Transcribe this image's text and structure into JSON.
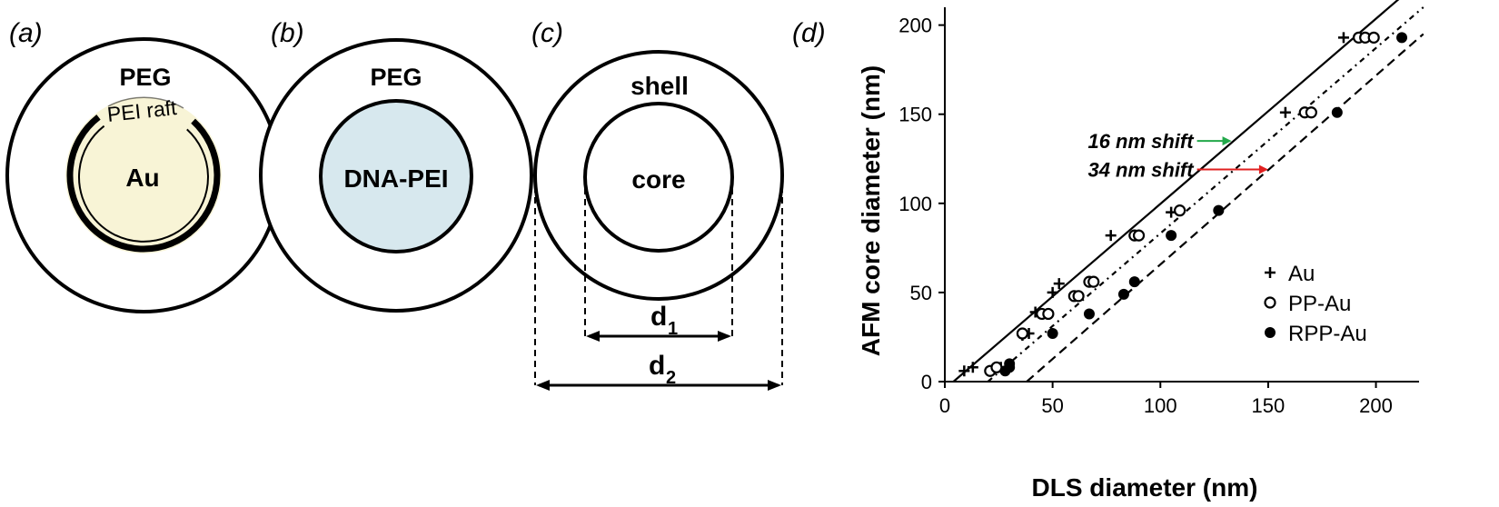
{
  "panels": [
    {
      "id": "a",
      "label": "(a)",
      "outer_label": "PEG",
      "raft_label": "PEI raft",
      "core_label": "Au",
      "core_color": "#f8f4d6"
    },
    {
      "id": "b",
      "label": "(b)",
      "outer_label": "PEG",
      "core_label": "DNA-PEI",
      "core_color": "#d7e8ee"
    },
    {
      "id": "c",
      "label": "(c)",
      "outer_label": "shell",
      "core_label": "core",
      "d1_label": "d",
      "d1_sub": "1",
      "d2_label": "d",
      "d2_sub": "2"
    },
    {
      "id": "d",
      "label": "(d)"
    }
  ],
  "chart_data": {
    "type": "scatter",
    "xlabel": "DLS diameter (nm)",
    "ylabel": "AFM core diameter (nm)",
    "xlim": [
      0,
      220
    ],
    "ylim": [
      0,
      210
    ],
    "x_ticks": [
      0,
      50,
      100,
      150,
      200
    ],
    "y_ticks": [
      0,
      50,
      100,
      150,
      200
    ],
    "grid": false,
    "legend_position": "bottom-right",
    "series": [
      {
        "name": "Au",
        "marker": "plus",
        "points": [
          [
            9,
            6
          ],
          [
            13,
            8
          ],
          [
            26,
            8
          ],
          [
            36,
            26
          ],
          [
            39,
            27
          ],
          [
            42,
            39
          ],
          [
            50,
            50
          ],
          [
            53,
            55
          ],
          [
            77,
            82
          ],
          [
            105,
            95
          ],
          [
            158,
            151
          ],
          [
            185,
            193
          ]
        ],
        "fit": {
          "style": "solid",
          "from": [
            4,
            0
          ],
          "to": [
            211,
            215
          ]
        }
      },
      {
        "name": "PP-Au",
        "marker": "open-circle",
        "points": [
          [
            21,
            6
          ],
          [
            24,
            8
          ],
          [
            36,
            27
          ],
          [
            45,
            38
          ],
          [
            48,
            38
          ],
          [
            60,
            48
          ],
          [
            62,
            48
          ],
          [
            67,
            56
          ],
          [
            69,
            56
          ],
          [
            88,
            82
          ],
          [
            90,
            82
          ],
          [
            109,
            96
          ],
          [
            167,
            151
          ],
          [
            170,
            151
          ],
          [
            192,
            193
          ],
          [
            195,
            193
          ],
          [
            199,
            193
          ]
        ],
        "fit": {
          "style": "dashdot",
          "from": [
            20,
            0
          ],
          "to": [
            222,
            210
          ]
        }
      },
      {
        "name": "RPP-Au",
        "marker": "filled-circle",
        "points": [
          [
            28,
            6
          ],
          [
            30,
            8
          ],
          [
            30,
            10
          ],
          [
            50,
            27
          ],
          [
            67,
            38
          ],
          [
            83,
            49
          ],
          [
            88,
            56
          ],
          [
            105,
            82
          ],
          [
            127,
            96
          ],
          [
            182,
            151
          ],
          [
            212,
            193
          ]
        ],
        "fit": {
          "style": "dashed",
          "from": [
            38,
            0
          ],
          "to": [
            222,
            195
          ]
        }
      }
    ],
    "annotations": [
      {
        "text": "16 nm shift",
        "color": "#22a84a",
        "arrow_from": [
          117,
          135
        ],
        "arrow_to": [
          133,
          135
        ]
      },
      {
        "text": "34 nm shift",
        "color": "#e02020",
        "arrow_from": [
          117,
          119
        ],
        "arrow_to": [
          150,
          119
        ]
      }
    ]
  }
}
